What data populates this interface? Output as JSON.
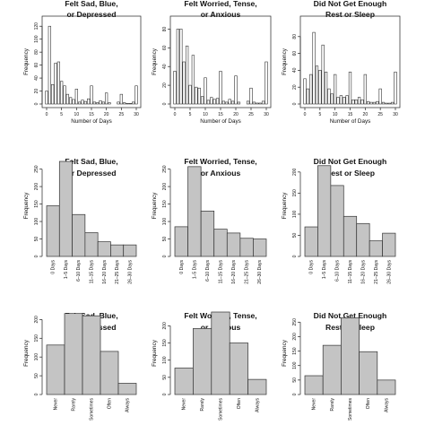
{
  "chart_data": [
    {
      "type": "bar",
      "title_lines": [
        "Felt Sad, Blue,",
        "or Depressed"
      ],
      "xlabel": "Number of Days",
      "ylabel": "Frequency",
      "x_scale": "numeric",
      "xlim": [
        0,
        30
      ],
      "xticks": [
        "0",
        "5",
        "10",
        "15",
        "20",
        "25",
        "30"
      ],
      "ylim": [
        0,
        130
      ],
      "yticks": [
        "0",
        "20",
        "40",
        "60",
        "80",
        "100",
        "120"
      ],
      "categories": [
        "0",
        "1",
        "2",
        "3",
        "4",
        "5",
        "6",
        "7",
        "8",
        "9",
        "10",
        "11",
        "12",
        "13",
        "14",
        "15",
        "16",
        "17",
        "18",
        "19",
        "20",
        "21",
        "22",
        "23",
        "24",
        "25",
        "26",
        "27",
        "28",
        "29",
        "30"
      ],
      "values": [
        20,
        120,
        30,
        63,
        65,
        35,
        28,
        15,
        10,
        7,
        23,
        3,
        6,
        4,
        8,
        28,
        3,
        2,
        5,
        3,
        17,
        2,
        0,
        0,
        3,
        15,
        2,
        1,
        1,
        3,
        28
      ]
    },
    {
      "type": "bar",
      "title_lines": [
        "Felt Worried, Tense,",
        "or Anxious"
      ],
      "xlabel": "Number of Days",
      "ylabel": "Frequency",
      "x_scale": "numeric",
      "xlim": [
        0,
        30
      ],
      "xticks": [
        "0",
        "5",
        "10",
        "15",
        "20",
        "25",
        "30"
      ],
      "ylim": [
        0,
        90
      ],
      "yticks": [
        "0",
        "20",
        "40",
        "60",
        "80"
      ],
      "categories": [
        "0",
        "1",
        "2",
        "3",
        "4",
        "5",
        "6",
        "7",
        "8",
        "9",
        "10",
        "11",
        "12",
        "13",
        "14",
        "15",
        "16",
        "17",
        "18",
        "19",
        "20",
        "21",
        "22",
        "23",
        "24",
        "25",
        "26",
        "27",
        "28",
        "29",
        "30"
      ],
      "values": [
        35,
        80,
        80,
        45,
        62,
        20,
        52,
        18,
        17,
        8,
        28,
        4,
        7,
        5,
        6,
        35,
        3,
        2,
        5,
        3,
        30,
        2,
        0,
        0,
        3,
        17,
        2,
        1,
        1,
        3,
        45
      ]
    },
    {
      "type": "bar",
      "title_lines": [
        "Did Not Get Enough",
        "Rest or Sleep"
      ],
      "xlabel": "Number of Days",
      "ylabel": "Frequency",
      "x_scale": "numeric",
      "xlim": [
        0,
        30
      ],
      "xticks": [
        "0",
        "5",
        "10",
        "15",
        "20",
        "25",
        "30"
      ],
      "ylim": [
        0,
        100
      ],
      "yticks": [
        "0",
        "20",
        "40",
        "60",
        "80"
      ],
      "categories": [
        "0",
        "1",
        "2",
        "3",
        "4",
        "5",
        "6",
        "7",
        "8",
        "9",
        "10",
        "11",
        "12",
        "13",
        "14",
        "15",
        "16",
        "17",
        "18",
        "19",
        "20",
        "21",
        "22",
        "23",
        "24",
        "25",
        "26",
        "27",
        "28",
        "29",
        "30"
      ],
      "values": [
        30,
        18,
        35,
        85,
        45,
        40,
        70,
        38,
        18,
        12,
        35,
        8,
        10,
        8,
        10,
        38,
        5,
        5,
        8,
        5,
        35,
        3,
        2,
        2,
        3,
        18,
        2,
        1,
        1,
        2,
        38
      ]
    },
    {
      "type": "bar",
      "title_lines": [
        "Felt Sad, Blue,",
        "or Depressed"
      ],
      "xlabel": "",
      "ylabel": "Frequency",
      "x_scale": "category",
      "ylim": [
        0,
        290
      ],
      "yticks": [
        "0",
        "50",
        "100",
        "150",
        "200",
        "250"
      ],
      "categories": [
        "0 Days",
        "1–5 Days",
        "6–10 Days",
        "11–15 Days",
        "16–20 Days",
        "21–25 Days",
        "26–30 Days"
      ],
      "values": [
        145,
        272,
        120,
        68,
        42,
        33,
        33
      ]
    },
    {
      "type": "bar",
      "title_lines": [
        "Felt Worried, Tense,",
        "or Anxious"
      ],
      "xlabel": "",
      "ylabel": "Frequency",
      "x_scale": "category",
      "ylim": [
        0,
        290
      ],
      "yticks": [
        "0",
        "50",
        "100",
        "150",
        "200",
        "250"
      ],
      "categories": [
        "0 Days",
        "1–5 Days",
        "6–10 Days",
        "11–15 Days",
        "16–20 Days",
        "21–25 Days",
        "26–30 Days"
      ],
      "values": [
        85,
        257,
        130,
        78,
        67,
        52,
        50
      ]
    },
    {
      "type": "bar",
      "title_lines": [
        "Did Not Get Enough",
        "Rest or Sleep"
      ],
      "xlabel": "",
      "ylabel": "Frequency",
      "x_scale": "category",
      "ylim": [
        0,
        240
      ],
      "yticks": [
        "0",
        "50",
        "100",
        "150",
        "200"
      ],
      "categories": [
        "0 Days",
        "1–5 Days",
        "6–10 Days",
        "11–15 Days",
        "16–20 Days",
        "21–25 Days",
        "26–30 Days"
      ],
      "values": [
        70,
        215,
        168,
        95,
        78,
        37,
        55
      ]
    },
    {
      "type": "bar",
      "title_lines": [
        "Felt Sad, Blue,",
        "or Depressed"
      ],
      "xlabel": "",
      "ylabel": "Frequency",
      "x_scale": "category",
      "ylim": [
        0,
        220
      ],
      "yticks": [
        "0",
        "50",
        "100",
        "150",
        "200"
      ],
      "categories": [
        "Never",
        "Rarely",
        "Sometimes",
        "Often",
        "Always"
      ],
      "values": [
        132,
        216,
        210,
        115,
        30
      ]
    },
    {
      "type": "bar",
      "title_lines": [
        "Felt Worried, Tense,",
        "or Anxious"
      ],
      "xlabel": "",
      "ylabel": "Frequency",
      "x_scale": "category",
      "ylim": [
        0,
        240
      ],
      "yticks": [
        "0",
        "50",
        "100",
        "150",
        "200"
      ],
      "categories": [
        "Never",
        "Rarely",
        "Sometimes",
        "Often",
        "Always"
      ],
      "values": [
        77,
        192,
        240,
        150,
        44
      ]
    },
    {
      "type": "bar",
      "title_lines": [
        "Did Not Get Enough",
        "Rest or Sleep"
      ],
      "xlabel": "",
      "ylabel": "Frequency",
      "x_scale": "category",
      "ylim": [
        0,
        285
      ],
      "yticks": [
        "0",
        "50",
        "100",
        "150",
        "200",
        "250"
      ],
      "categories": [
        "Never",
        "Rarely",
        "Sometimes",
        "Often",
        "Always"
      ],
      "values": [
        65,
        170,
        265,
        148,
        50
      ]
    }
  ]
}
